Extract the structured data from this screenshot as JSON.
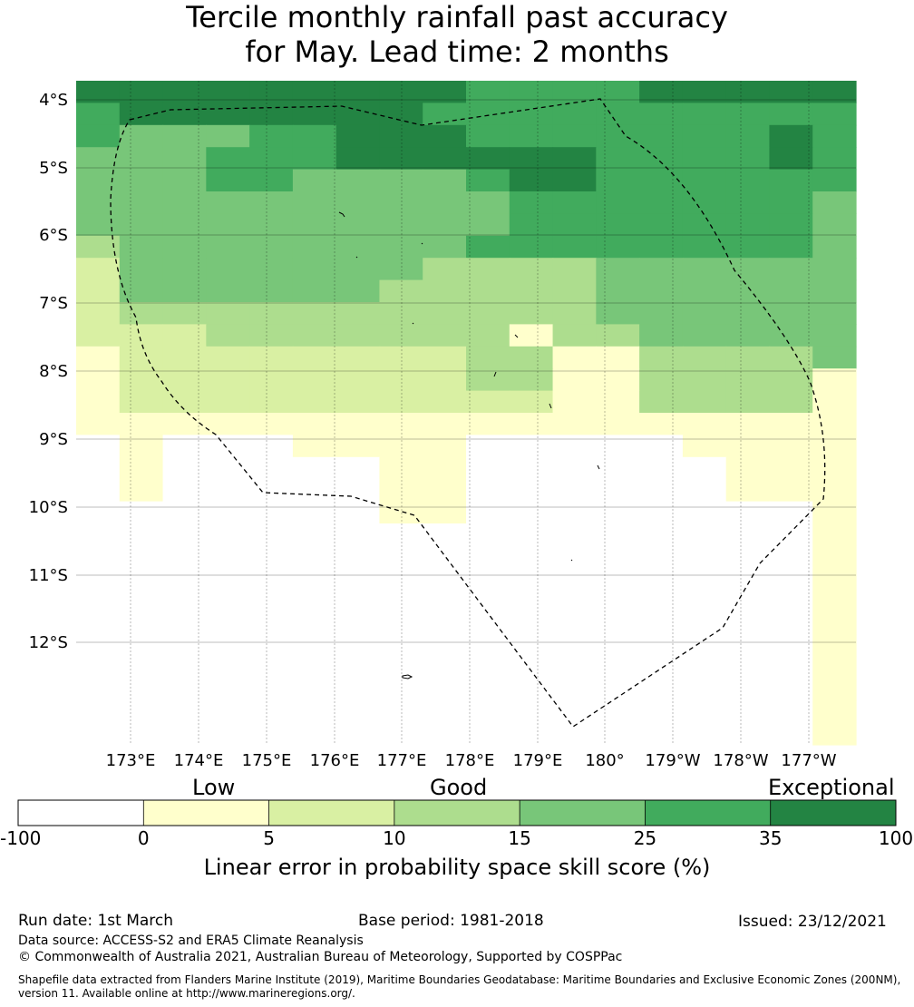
{
  "title": {
    "line1": "Tercile monthly rainfall past accuracy",
    "line2": "for May. Lead time: 2 months"
  },
  "map": {
    "lat_labels": [
      "4°S",
      "5°S",
      "6°S",
      "7°S",
      "8°S",
      "9°S",
      "10°S",
      "11°S",
      "12°S"
    ],
    "lon_labels": [
      "173°E",
      "174°E",
      "175°E",
      "176°E",
      "177°E",
      "178°E",
      "179°E",
      "180°",
      "179°W",
      "178°W",
      "177°W"
    ],
    "grid_colors": [
      "#ffffff",
      "#ffffcc",
      "#d9f0a3",
      "#addd8e",
      "#78c679",
      "#41ab5d",
      "#238443"
    ],
    "grid_levels": [
      "666666666555566666",
      "566666665555555555",
      "544455666555555565",
      "444555666666555565",
      "444554444566555555",
      "444444444455555554",
      "444444444455555554",
      "344444444555555554",
      "244444443333444444",
      "244444433333444444",
      "233333333333444444",
      "222333333313344444",
      "122222222331133334",
      "122222222331133331",
      "122222222221133331",
      "111111111111111111",
      "010001111000001111",
      "010000011000000111",
      "010000011000000111",
      "000000011000000001",
      "000000000000000001",
      "000000000000000001",
      "000000000000000001",
      "000000000000000001",
      "000000000000000001",
      "000000000000000001",
      "000000000000000001",
      "000000000000000001",
      "000000000000000001",
      "000000000000000001"
    ]
  },
  "colorbar": {
    "categories": [
      "Low",
      "Good",
      "Exceptional"
    ],
    "bins": [
      {
        "color": "#ffffff"
      },
      {
        "color": "#ffffcc"
      },
      {
        "color": "#d9f0a3"
      },
      {
        "color": "#addd8e"
      },
      {
        "color": "#78c679"
      },
      {
        "color": "#41ab5d"
      },
      {
        "color": "#238443"
      }
    ],
    "ticks": [
      "-100",
      "0",
      "5",
      "10",
      "15",
      "25",
      "35",
      "100"
    ],
    "label": "Linear error in probability space skill score (%)"
  },
  "footer": {
    "run_date": "Run date: 1st March",
    "base_period": "Base period: 1981-2018",
    "issued": "Issued: 23/12/2021",
    "data_source": "Data source: ACCESS-S2 and ERA5 Climate Reanalysis",
    "copyright": "© Commonwealth of Australia 2021, Australian Bureau of Meteorology, Supported by COSPPac",
    "shapefile": "Shapefile data extracted from Flanders Marine Institute (2019), Maritime Boundaries Geodatabase: Maritime Boundaries and Exclusive Economic Zones (200NM), version 11. Available online at http://www.marineregions.org/."
  }
}
